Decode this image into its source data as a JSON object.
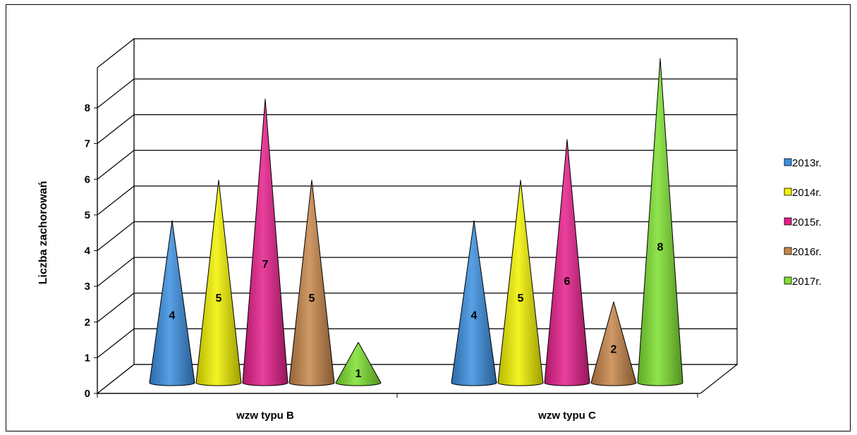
{
  "chart_data": {
    "type": "bar",
    "style": "3d-cone",
    "title": "",
    "xlabel": "",
    "ylabel": "Liczba zachorowań",
    "categories": [
      "wzw typu B",
      "wzw typu C"
    ],
    "series": [
      {
        "name": "2013r.",
        "color": "#3a8fe0",
        "values": [
          4,
          4
        ]
      },
      {
        "name": "2014r.",
        "color": "#f2f200",
        "values": [
          5,
          5
        ]
      },
      {
        "name": "2015r.",
        "color": "#e61e8c",
        "values": [
          7,
          6
        ]
      },
      {
        "name": "2016r.",
        "color": "#c8864a",
        "values": [
          5,
          2
        ]
      },
      {
        "name": "2017r.",
        "color": "#7ee030",
        "values": [
          1,
          8
        ]
      }
    ],
    "ylim": [
      0,
      8
    ],
    "yticks": [
      0,
      1,
      2,
      3,
      4,
      5,
      6,
      7,
      8
    ],
    "grid": true,
    "legend": "right",
    "data_labels": true
  }
}
